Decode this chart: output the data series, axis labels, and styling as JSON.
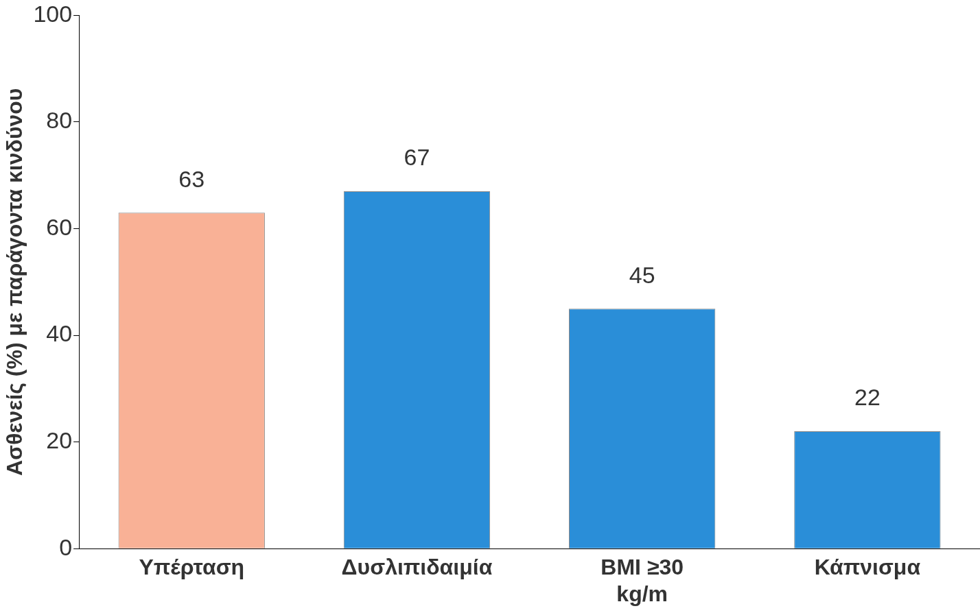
{
  "chart_data": {
    "type": "bar",
    "ylabel": "Ασθενείς (%) με παράγοντα κινδύνου",
    "categories": [
      "Υπέρταση",
      "Δυσλιπιδαιμία",
      "BMI ≥30 kg/m",
      "Κάπνισμα"
    ],
    "values": [
      63,
      67,
      45,
      22
    ],
    "colors": [
      "#f9b196",
      "#2a8ed8",
      "#2a8ed8",
      "#2a8ed8"
    ],
    "ylim": [
      0,
      100
    ],
    "yticks": [
      0,
      20,
      40,
      60,
      80,
      100
    ],
    "grid": false,
    "legend": false,
    "data_labels": true
  }
}
